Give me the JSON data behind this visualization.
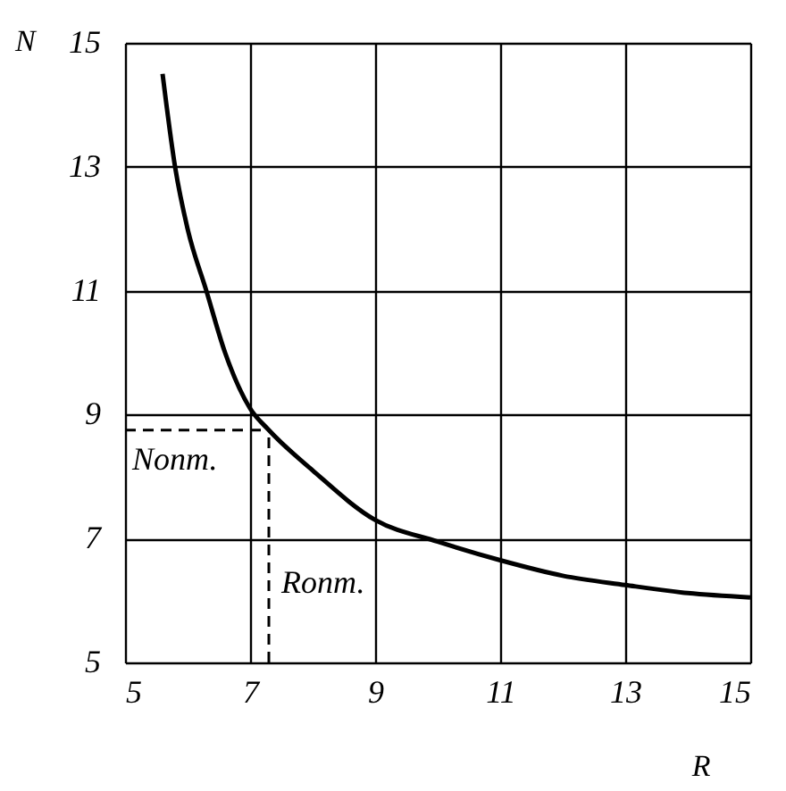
{
  "chart_data": {
    "type": "line",
    "xlabel": "R",
    "ylabel": "N",
    "x": [
      5.6,
      5.8,
      6.0,
      6.3,
      6.6,
      7.0,
      7.3,
      8.0,
      9.0,
      10.0,
      11.0,
      12.0,
      13.0,
      14.0,
      15.0
    ],
    "series": [
      {
        "color": "#000000",
        "values": [
          14.5,
          13.0,
          12.0,
          11.0,
          10.0,
          9.1,
          8.75,
          8.1,
          7.3,
          6.95,
          6.65,
          6.4,
          6.25,
          6.12,
          6.05
        ]
      }
    ],
    "xlim": [
      5,
      15
    ],
    "ylim": [
      5,
      15
    ],
    "xticks": [
      5,
      7,
      9,
      11,
      13,
      15
    ],
    "yticks": [
      5,
      7,
      9,
      11,
      13,
      15
    ],
    "grid": true,
    "marker": "none",
    "line_style": "solid",
    "ref_lines": [
      {
        "axis": "y",
        "value": 8.75,
        "label": "Nопт.",
        "line_style": "dashed",
        "color": "#000000"
      },
      {
        "axis": "x",
        "value": 7.3,
        "label": "Rопт.",
        "line_style": "dashed",
        "color": "#000000"
      }
    ]
  }
}
